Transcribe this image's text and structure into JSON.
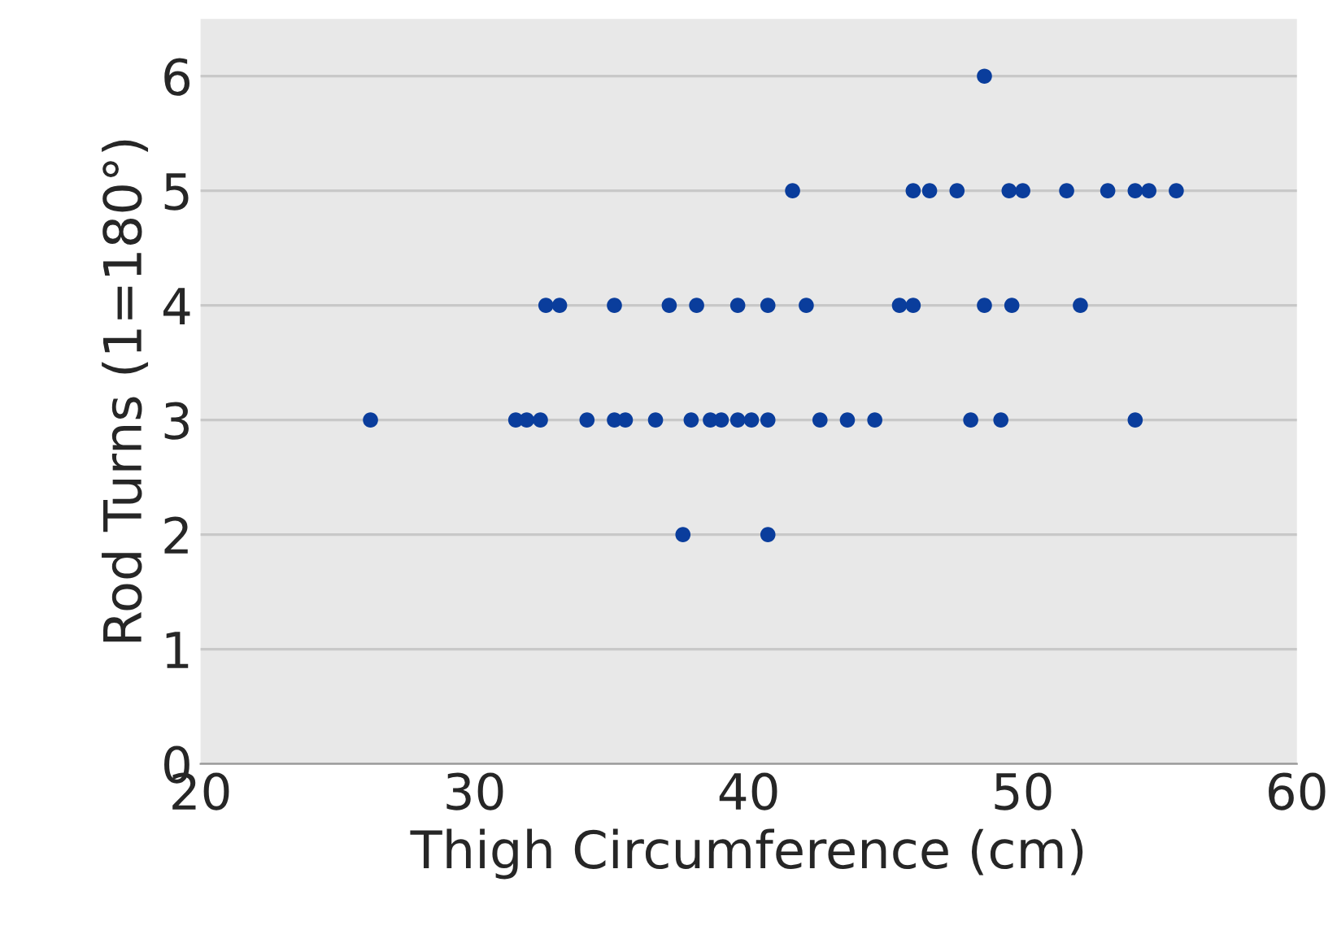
{
  "chart_data": {
    "type": "scatter",
    "xlabel": "Thigh Circumference (cm)",
    "ylabel": "Rod Turns (1=180°)",
    "series": [
      {
        "color": "#0a3d9c",
        "x": [
          26.2,
          31.5,
          31.9,
          32.4,
          34.1,
          35.1,
          35.5,
          36.6,
          37.9,
          38.6,
          39.0,
          39.6,
          40.1,
          40.7,
          42.6,
          43.6,
          44.6,
          48.1,
          49.2,
          54.1,
          37.6,
          40.7,
          32.6,
          33.1,
          35.1,
          37.1,
          38.1,
          39.6,
          40.7,
          42.1,
          45.5,
          46.0,
          48.6,
          49.6,
          52.1,
          41.6,
          46.0,
          46.6,
          47.6,
          49.5,
          50.0,
          51.6,
          53.1,
          54.1,
          54.6,
          55.6,
          48.6
        ],
        "values": [
          3,
          3,
          3,
          3,
          3,
          3,
          3,
          3,
          3,
          3,
          3,
          3,
          3,
          3,
          3,
          3,
          3,
          3,
          3,
          3,
          2,
          2,
          4,
          4,
          4,
          4,
          4,
          4,
          4,
          4,
          4,
          4,
          4,
          4,
          4,
          5,
          5,
          5,
          5,
          5,
          5,
          5,
          5,
          5,
          5,
          5,
          6
        ]
      }
    ],
    "xlim": [
      20,
      60
    ],
    "xticks": [
      20,
      30,
      40,
      50,
      60
    ],
    "ylim": [
      0,
      6.5
    ],
    "yticks": [
      0,
      1,
      2,
      3,
      4,
      5,
      6
    ],
    "grid": "y",
    "marker": "circle"
  }
}
